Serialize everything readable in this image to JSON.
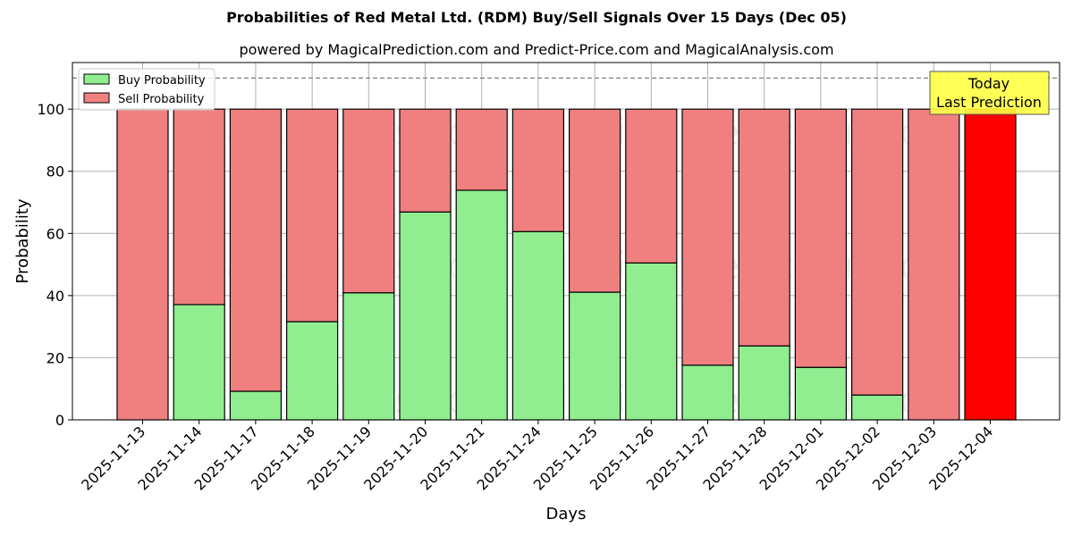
{
  "chart_data": {
    "type": "bar",
    "stacked": true,
    "title": "Probabilities of Red Metal Ltd. (RDM) Buy/Sell Signals Over 15 Days (Dec 05)",
    "subtitle": "powered by MagicalPrediction.com and Predict-Price.com and MagicalAnalysis.com",
    "xlabel": "Days",
    "ylabel": "Probability",
    "ylim": [
      0,
      115
    ],
    "yticks": [
      0,
      20,
      40,
      60,
      80,
      100
    ],
    "grid": true,
    "legend_position": "upper left",
    "categories": [
      "2025-11-13",
      "2025-11-14",
      "2025-11-17",
      "2025-11-18",
      "2025-11-19",
      "2025-11-20",
      "2025-11-21",
      "2025-11-24",
      "2025-11-25",
      "2025-11-26",
      "2025-11-27",
      "2025-11-28",
      "2025-12-01",
      "2025-12-02",
      "2025-12-03",
      "2025-12-04"
    ],
    "series": [
      {
        "name": "Buy Probability",
        "color": "#90ee90",
        "values": [
          0,
          37.1,
          9.2,
          31.6,
          40.9,
          66.9,
          73.9,
          60.6,
          41.1,
          50.5,
          17.6,
          23.8,
          16.9,
          8.0,
          0,
          0
        ]
      },
      {
        "name": "Sell Probability",
        "color": "#f08080",
        "values": [
          100,
          62.9,
          90.8,
          68.4,
          59.1,
          33.1,
          26.1,
          39.4,
          58.9,
          49.5,
          82.4,
          76.2,
          83.1,
          92.0,
          100,
          100
        ]
      }
    ],
    "highlight": {
      "index": 15,
      "color": "#ff0000"
    },
    "reference_line": {
      "y": 110,
      "style": "dashed",
      "color": "#808080"
    },
    "annotation": {
      "text_line1": "Today",
      "text_line2": "Last Prediction",
      "background": "#ffff44"
    },
    "watermarks": [
      "MagicalAnalysis.com",
      "MagicalPrediction.com"
    ]
  }
}
